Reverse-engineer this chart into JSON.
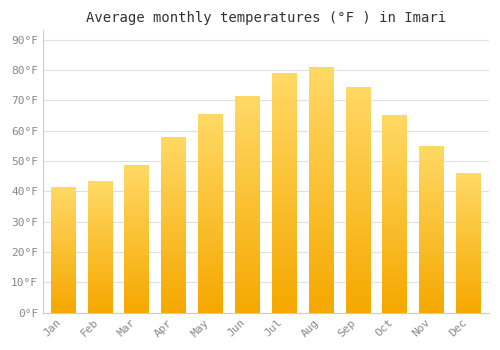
{
  "title": "Average monthly temperatures (°F ) in Imari",
  "months": [
    "Jan",
    "Feb",
    "Mar",
    "Apr",
    "May",
    "Jun",
    "Jul",
    "Aug",
    "Sep",
    "Oct",
    "Nov",
    "Dec"
  ],
  "values": [
    41.5,
    43.5,
    48.5,
    58,
    65.5,
    71.5,
    79,
    81,
    74.5,
    65,
    55,
    46
  ],
  "bar_color_dark": "#F5A800",
  "bar_color_light": "#FFD966",
  "yticks": [
    0,
    10,
    20,
    30,
    40,
    50,
    60,
    70,
    80,
    90
  ],
  "ylim": [
    0,
    93
  ],
  "background_color": "#FFFFFF",
  "grid_color": "#E0E0E0",
  "title_fontsize": 10,
  "tick_fontsize": 8,
  "tick_color": "#888888"
}
